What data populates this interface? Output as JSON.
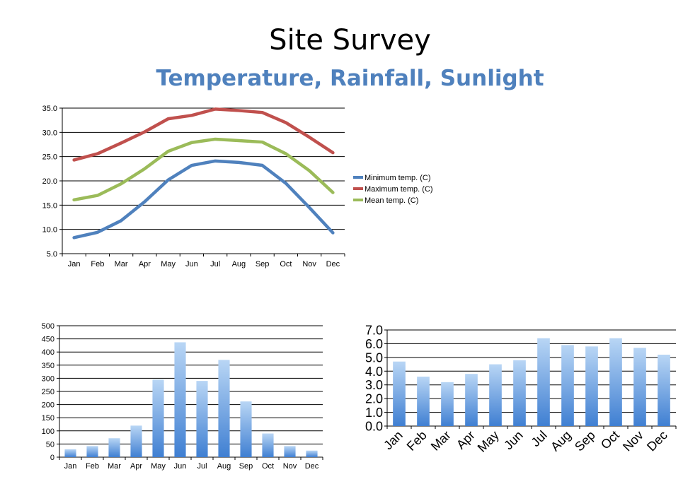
{
  "header": {
    "title": "Site Survey",
    "subtitle": "Temperature, Rainfall, Sunlight"
  },
  "colors": {
    "min": "#4f81bd",
    "max": "#c0504d",
    "mean": "#9bbb59",
    "bar_top": "#b9d6f5",
    "bar_bottom": "#3f7fd2"
  },
  "chart_data": [
    {
      "type": "line",
      "categories": [
        "Jan",
        "Feb",
        "Mar",
        "Apr",
        "May",
        "Jun",
        "Jul",
        "Aug",
        "Sep",
        "Oct",
        "Nov",
        "Dec"
      ],
      "series": [
        {
          "name": "Minimum temp. (C)",
          "color": "#4f81bd",
          "values": [
            8.3,
            9.4,
            11.8,
            15.7,
            20.2,
            23.2,
            24.1,
            23.8,
            23.2,
            19.5,
            14.5,
            9.3
          ]
        },
        {
          "name": "Maximum temp. (C)",
          "color": "#c0504d",
          "values": [
            24.3,
            25.6,
            27.8,
            30.1,
            32.8,
            33.5,
            34.8,
            34.5,
            34.1,
            32.0,
            29.0,
            25.8
          ]
        },
        {
          "name": "Mean temp. (C)",
          "color": "#9bbb59",
          "values": [
            16.1,
            17.0,
            19.4,
            22.5,
            26.1,
            27.9,
            28.6,
            28.3,
            28.0,
            25.6,
            22.1,
            17.6
          ]
        }
      ],
      "ylim": [
        5,
        35
      ],
      "yticks": [
        "5.0",
        "10.0",
        "15.0",
        "20.0",
        "25.0",
        "30.0",
        "35.0"
      ],
      "grid": true,
      "legend": "right"
    },
    {
      "type": "bar",
      "categories": [
        "Jan",
        "Feb",
        "Mar",
        "Apr",
        "May",
        "Jun",
        "Jul",
        "Aug",
        "Sep",
        "Oct",
        "Nov",
        "Dec"
      ],
      "values": [
        30,
        42,
        72,
        120,
        295,
        437,
        290,
        370,
        212,
        90,
        42,
        25
      ],
      "ylim": [
        0,
        500
      ],
      "yticks": [
        "0",
        "50",
        "100",
        "150",
        "200",
        "250",
        "300",
        "350",
        "400",
        "450",
        "500"
      ],
      "grid": true
    },
    {
      "type": "bar",
      "categories": [
        "Jan",
        "Feb",
        "Mar",
        "Apr",
        "May",
        "Jun",
        "Jul",
        "Aug",
        "Sep",
        "Oct",
        "Nov",
        "Dec"
      ],
      "values": [
        4.7,
        3.6,
        3.2,
        3.8,
        4.5,
        4.8,
        6.4,
        5.9,
        5.8,
        6.4,
        5.7,
        5.2
      ],
      "ylim": [
        0,
        7
      ],
      "yticks": [
        "0.0",
        "1.0",
        "2.0",
        "3.0",
        "4.0",
        "5.0",
        "6.0",
        "7.0"
      ],
      "grid": true,
      "xlabel_rotation": "diagonal"
    }
  ]
}
